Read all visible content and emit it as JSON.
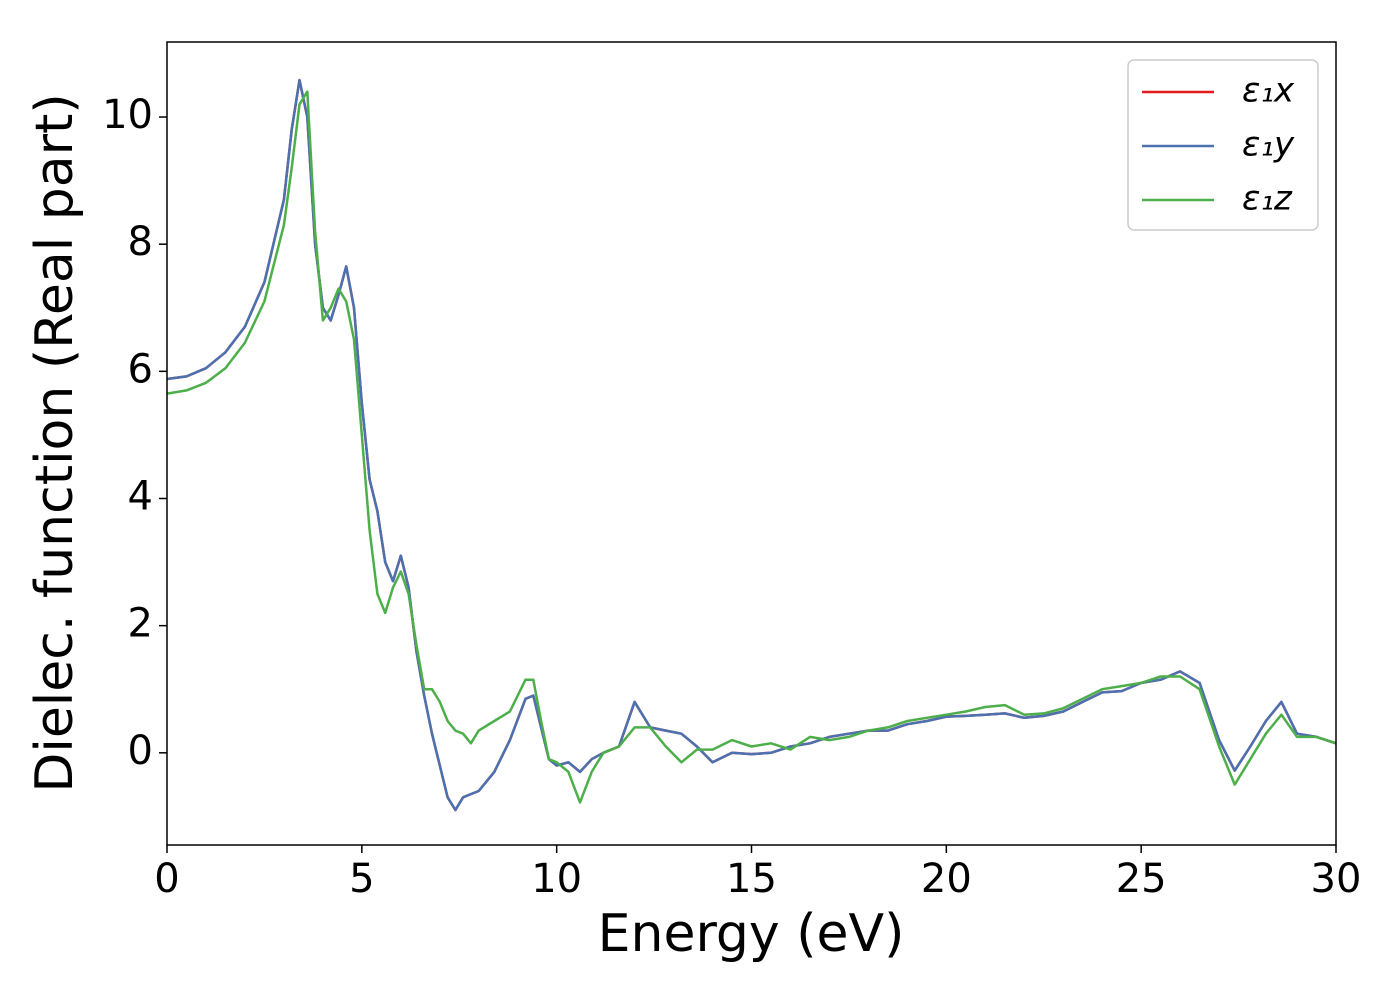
{
  "chart_data": {
    "type": "line",
    "x_label": "Energy (eV)",
    "y_label": "Dielec. function (Real part)",
    "x": [
      0,
      0.5,
      1,
      1.5,
      2,
      2.5,
      3,
      3.2,
      3.4,
      3.6,
      3.8,
      4,
      4.2,
      4.4,
      4.6,
      4.8,
      5,
      5.2,
      5.4,
      5.6,
      5.8,
      6,
      6.2,
      6.4,
      6.6,
      6.8,
      7,
      7.2,
      7.4,
      7.6,
      7.8,
      8,
      8.4,
      8.8,
      9.2,
      9.4,
      9.6,
      9.8,
      10,
      10.3,
      10.6,
      10.9,
      11.2,
      11.6,
      12,
      12.4,
      12.8,
      13.2,
      13.6,
      14,
      14.5,
      15,
      15.5,
      16,
      16.5,
      17,
      17.5,
      18,
      18.5,
      19,
      19.5,
      20,
      20.5,
      21,
      21.5,
      22,
      22.5,
      23,
      23.5,
      24,
      24.5,
      25,
      25.5,
      26,
      26.5,
      27,
      27.4,
      27.8,
      28.2,
      28.6,
      29,
      29.5,
      30
    ],
    "series": [
      {
        "name": "ε₁x",
        "color": "#e41a1c",
        "values": [
          5.88,
          5.92,
          6.05,
          6.3,
          6.7,
          7.4,
          8.7,
          9.8,
          10.58,
          10.0,
          8.0,
          7.0,
          6.8,
          7.2,
          7.65,
          7.0,
          5.5,
          4.3,
          3.8,
          3.0,
          2.7,
          3.1,
          2.6,
          1.6,
          0.9,
          0.3,
          -0.2,
          -0.7,
          -0.9,
          -0.7,
          -0.65,
          -0.6,
          -0.3,
          0.2,
          0.85,
          0.9,
          0.4,
          -0.1,
          -0.2,
          -0.15,
          -0.3,
          -0.1,
          0.0,
          0.1,
          0.8,
          0.4,
          0.35,
          0.3,
          0.1,
          -0.15,
          0.0,
          -0.02,
          0.0,
          0.1,
          0.15,
          0.25,
          0.3,
          0.35,
          0.35,
          0.45,
          0.5,
          0.57,
          0.58,
          0.6,
          0.62,
          0.55,
          0.58,
          0.65,
          0.8,
          0.95,
          0.97,
          1.1,
          1.15,
          1.28,
          1.1,
          0.2,
          -0.28,
          0.1,
          0.5,
          0.8,
          0.3,
          0.25,
          0.15
        ]
      },
      {
        "name": "ε₁y",
        "color": "#4a72b0",
        "values": [
          5.88,
          5.92,
          6.05,
          6.3,
          6.7,
          7.4,
          8.7,
          9.8,
          10.58,
          10.0,
          8.0,
          7.0,
          6.8,
          7.2,
          7.65,
          7.0,
          5.5,
          4.3,
          3.8,
          3.0,
          2.7,
          3.1,
          2.6,
          1.6,
          0.9,
          0.3,
          -0.2,
          -0.7,
          -0.9,
          -0.7,
          -0.65,
          -0.6,
          -0.3,
          0.2,
          0.85,
          0.9,
          0.4,
          -0.1,
          -0.2,
          -0.15,
          -0.3,
          -0.1,
          0.0,
          0.1,
          0.8,
          0.4,
          0.35,
          0.3,
          0.1,
          -0.15,
          0.0,
          -0.02,
          0.0,
          0.1,
          0.15,
          0.25,
          0.3,
          0.35,
          0.35,
          0.45,
          0.5,
          0.57,
          0.58,
          0.6,
          0.62,
          0.55,
          0.58,
          0.65,
          0.8,
          0.95,
          0.97,
          1.1,
          1.15,
          1.28,
          1.1,
          0.2,
          -0.28,
          0.1,
          0.5,
          0.8,
          0.3,
          0.25,
          0.15
        ]
      },
      {
        "name": "ε₁z",
        "color": "#4daf4a",
        "values": [
          5.65,
          5.7,
          5.82,
          6.05,
          6.45,
          7.1,
          8.3,
          9.2,
          10.2,
          10.4,
          8.2,
          6.8,
          7.0,
          7.3,
          7.1,
          6.5,
          5.0,
          3.5,
          2.5,
          2.2,
          2.6,
          2.85,
          2.5,
          1.7,
          1.0,
          1.0,
          0.8,
          0.5,
          0.35,
          0.3,
          0.15,
          0.35,
          0.5,
          0.65,
          1.15,
          1.15,
          0.5,
          -0.1,
          -0.15,
          -0.3,
          -0.78,
          -0.3,
          0.0,
          0.1,
          0.4,
          0.4,
          0.1,
          -0.15,
          0.05,
          0.05,
          0.2,
          0.1,
          0.15,
          0.05,
          0.25,
          0.2,
          0.25,
          0.35,
          0.4,
          0.5,
          0.55,
          0.6,
          0.65,
          0.72,
          0.75,
          0.6,
          0.62,
          0.7,
          0.85,
          1.0,
          1.05,
          1.1,
          1.2,
          1.2,
          1.0,
          0.1,
          -0.5,
          -0.1,
          0.3,
          0.6,
          0.25,
          0.25,
          0.15
        ]
      }
    ],
    "xlim": [
      0,
      30
    ],
    "ylim": [
      -1.45,
      11.18
    ],
    "xticks": [
      0,
      5,
      10,
      15,
      20,
      25,
      30
    ],
    "yticks": [
      0,
      2,
      4,
      6,
      8,
      10
    ],
    "legend": "upper right"
  }
}
